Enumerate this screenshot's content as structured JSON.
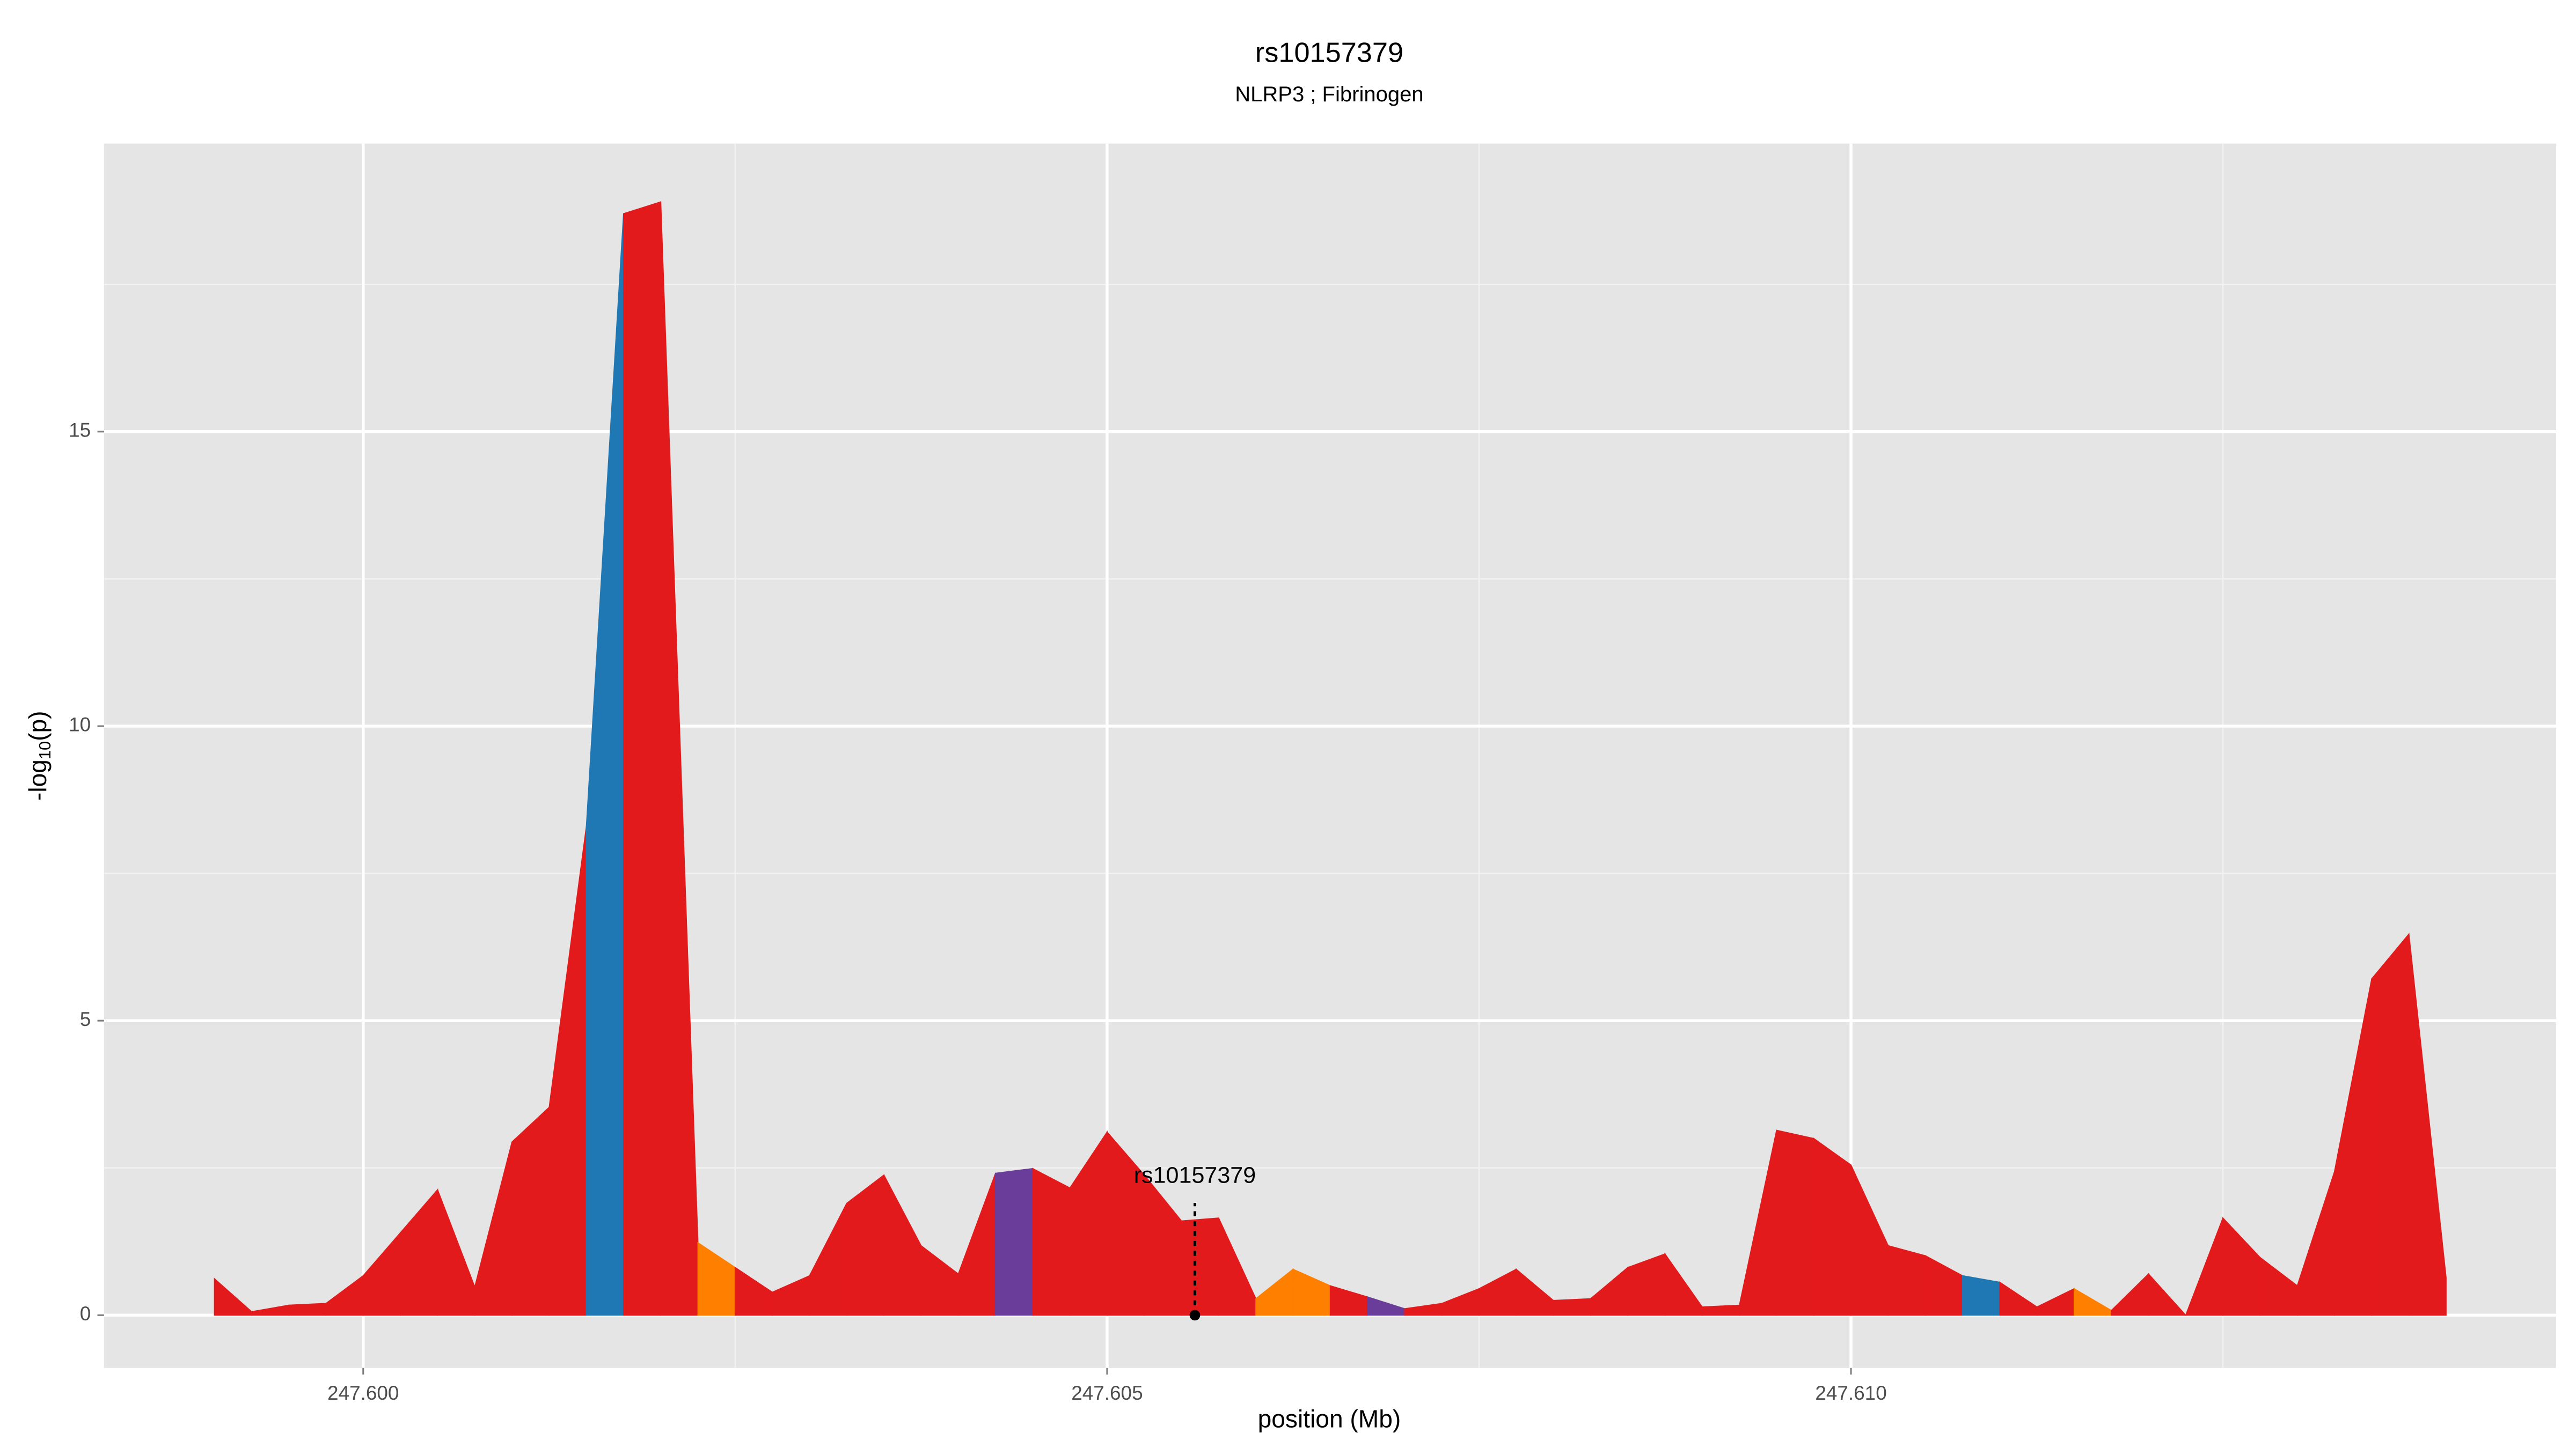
{
  "chart_data": {
    "type": "area",
    "title": "rs10157379",
    "subtitle": "NLRP3 ; Fibrinogen",
    "xlabel": "position (Mb)",
    "ylabel": {
      "base": "-log",
      "subscript": "10",
      "rest": "(p)"
    },
    "x": [
      247.599,
      247.59925,
      247.5995,
      247.59975,
      247.6,
      247.60025,
      247.6005,
      247.60075,
      247.601,
      247.60125,
      247.6015,
      247.60175,
      247.602,
      247.60225,
      247.6025,
      247.60275,
      247.603,
      247.60325,
      247.6035,
      247.60375,
      247.604,
      247.60425,
      247.6045,
      247.60475,
      247.605,
      247.60525,
      247.6055,
      247.60575,
      247.606,
      247.60625,
      247.6065,
      247.60675,
      247.607,
      247.60725,
      247.6075,
      247.60775,
      247.608,
      247.60825,
      247.6085,
      247.60875,
      247.609,
      247.60925,
      247.6095,
      247.60975,
      247.61,
      247.61025,
      247.6105,
      247.61075,
      247.611,
      247.61125,
      247.6115,
      247.61175,
      247.612,
      247.61225,
      247.6125,
      247.61275,
      247.613,
      247.61325,
      247.6135,
      247.61375,
      247.614
    ],
    "values": [
      0.62,
      0.06,
      0.17,
      0.2,
      0.67,
      1.4,
      2.13,
      0.48,
      2.94,
      3.53,
      8.3,
      18.7,
      18.9,
      1.23,
      0.81,
      0.39,
      0.67,
      1.9,
      2.38,
      1.18,
      0.7,
      2.41,
      2.49,
      2.16,
      3.11,
      2.38,
      1.6,
      1.65,
      0.28,
      0.78,
      0.5,
      0.31,
      0.11,
      0.2,
      0.45,
      0.78,
      0.25,
      0.28,
      0.81,
      1.04,
      0.14,
      0.17,
      3.14,
      3.0,
      2.55,
      1.18,
      1.01,
      0.67,
      0.56,
      0.14,
      0.45,
      0.08,
      0.7,
      0,
      1.65,
      0.98,
      0.5,
      2.44,
      5.71,
      6.47,
      0.64
    ],
    "segment_colors": [
      "#e31a1c",
      "#e31a1c",
      "#e31a1c",
      "#e31a1c",
      "#e31a1c",
      "#e31a1c",
      "#e31a1c",
      "#e31a1c",
      "#e31a1c",
      "#e31a1c",
      "#1f78b4",
      "#e31a1c",
      "#e31a1c",
      "#ff7f00",
      "#e31a1c",
      "#e31a1c",
      "#e31a1c",
      "#e31a1c",
      "#e31a1c",
      "#e31a1c",
      "#e31a1c",
      "#6a3d9a",
      "#e31a1c",
      "#e31a1c",
      "#e31a1c",
      "#e31a1c",
      "#e31a1c",
      "#e31a1c",
      "#ff7f00",
      "#ff7f00",
      "#e31a1c",
      "#6a3d9a",
      "#e31a1c",
      "#e31a1c",
      "#e31a1c",
      "#e31a1c",
      "#e31a1c",
      "#e31a1c",
      "#e31a1c",
      "#e31a1c",
      "#e31a1c",
      "#e31a1c",
      "#e31a1c",
      "#e31a1c",
      "#e31a1c",
      "#e31a1c",
      "#e31a1c",
      "#1f78b4",
      "#e31a1c",
      "#e31a1c",
      "#ff7f00",
      "#e31a1c",
      "#e31a1c",
      "#e31a1c",
      "#e31a1c",
      "#e31a1c",
      "#e31a1c",
      "#e31a1c",
      "#e31a1c",
      "#e31a1c"
    ],
    "annotation": {
      "text": "rs10157379",
      "x": 247.60559,
      "y": 0
    },
    "xlim": [
      247.598258,
      247.61474
    ],
    "ylim": [
      -0.896,
      19.89
    ],
    "xticks": [
      {
        "value": 247.6,
        "label": "247.600"
      },
      {
        "value": 247.605,
        "label": "247.605"
      },
      {
        "value": 247.61,
        "label": "247.610"
      }
    ],
    "x_minor_grid": [
      247.6025,
      247.6075,
      247.6125
    ],
    "yticks": [
      0,
      5,
      10,
      15
    ],
    "y_minor_grid": [
      2.5,
      7.5,
      12.5,
      17.5
    ],
    "grid": true,
    "panel_color": "#e5e5e5"
  }
}
